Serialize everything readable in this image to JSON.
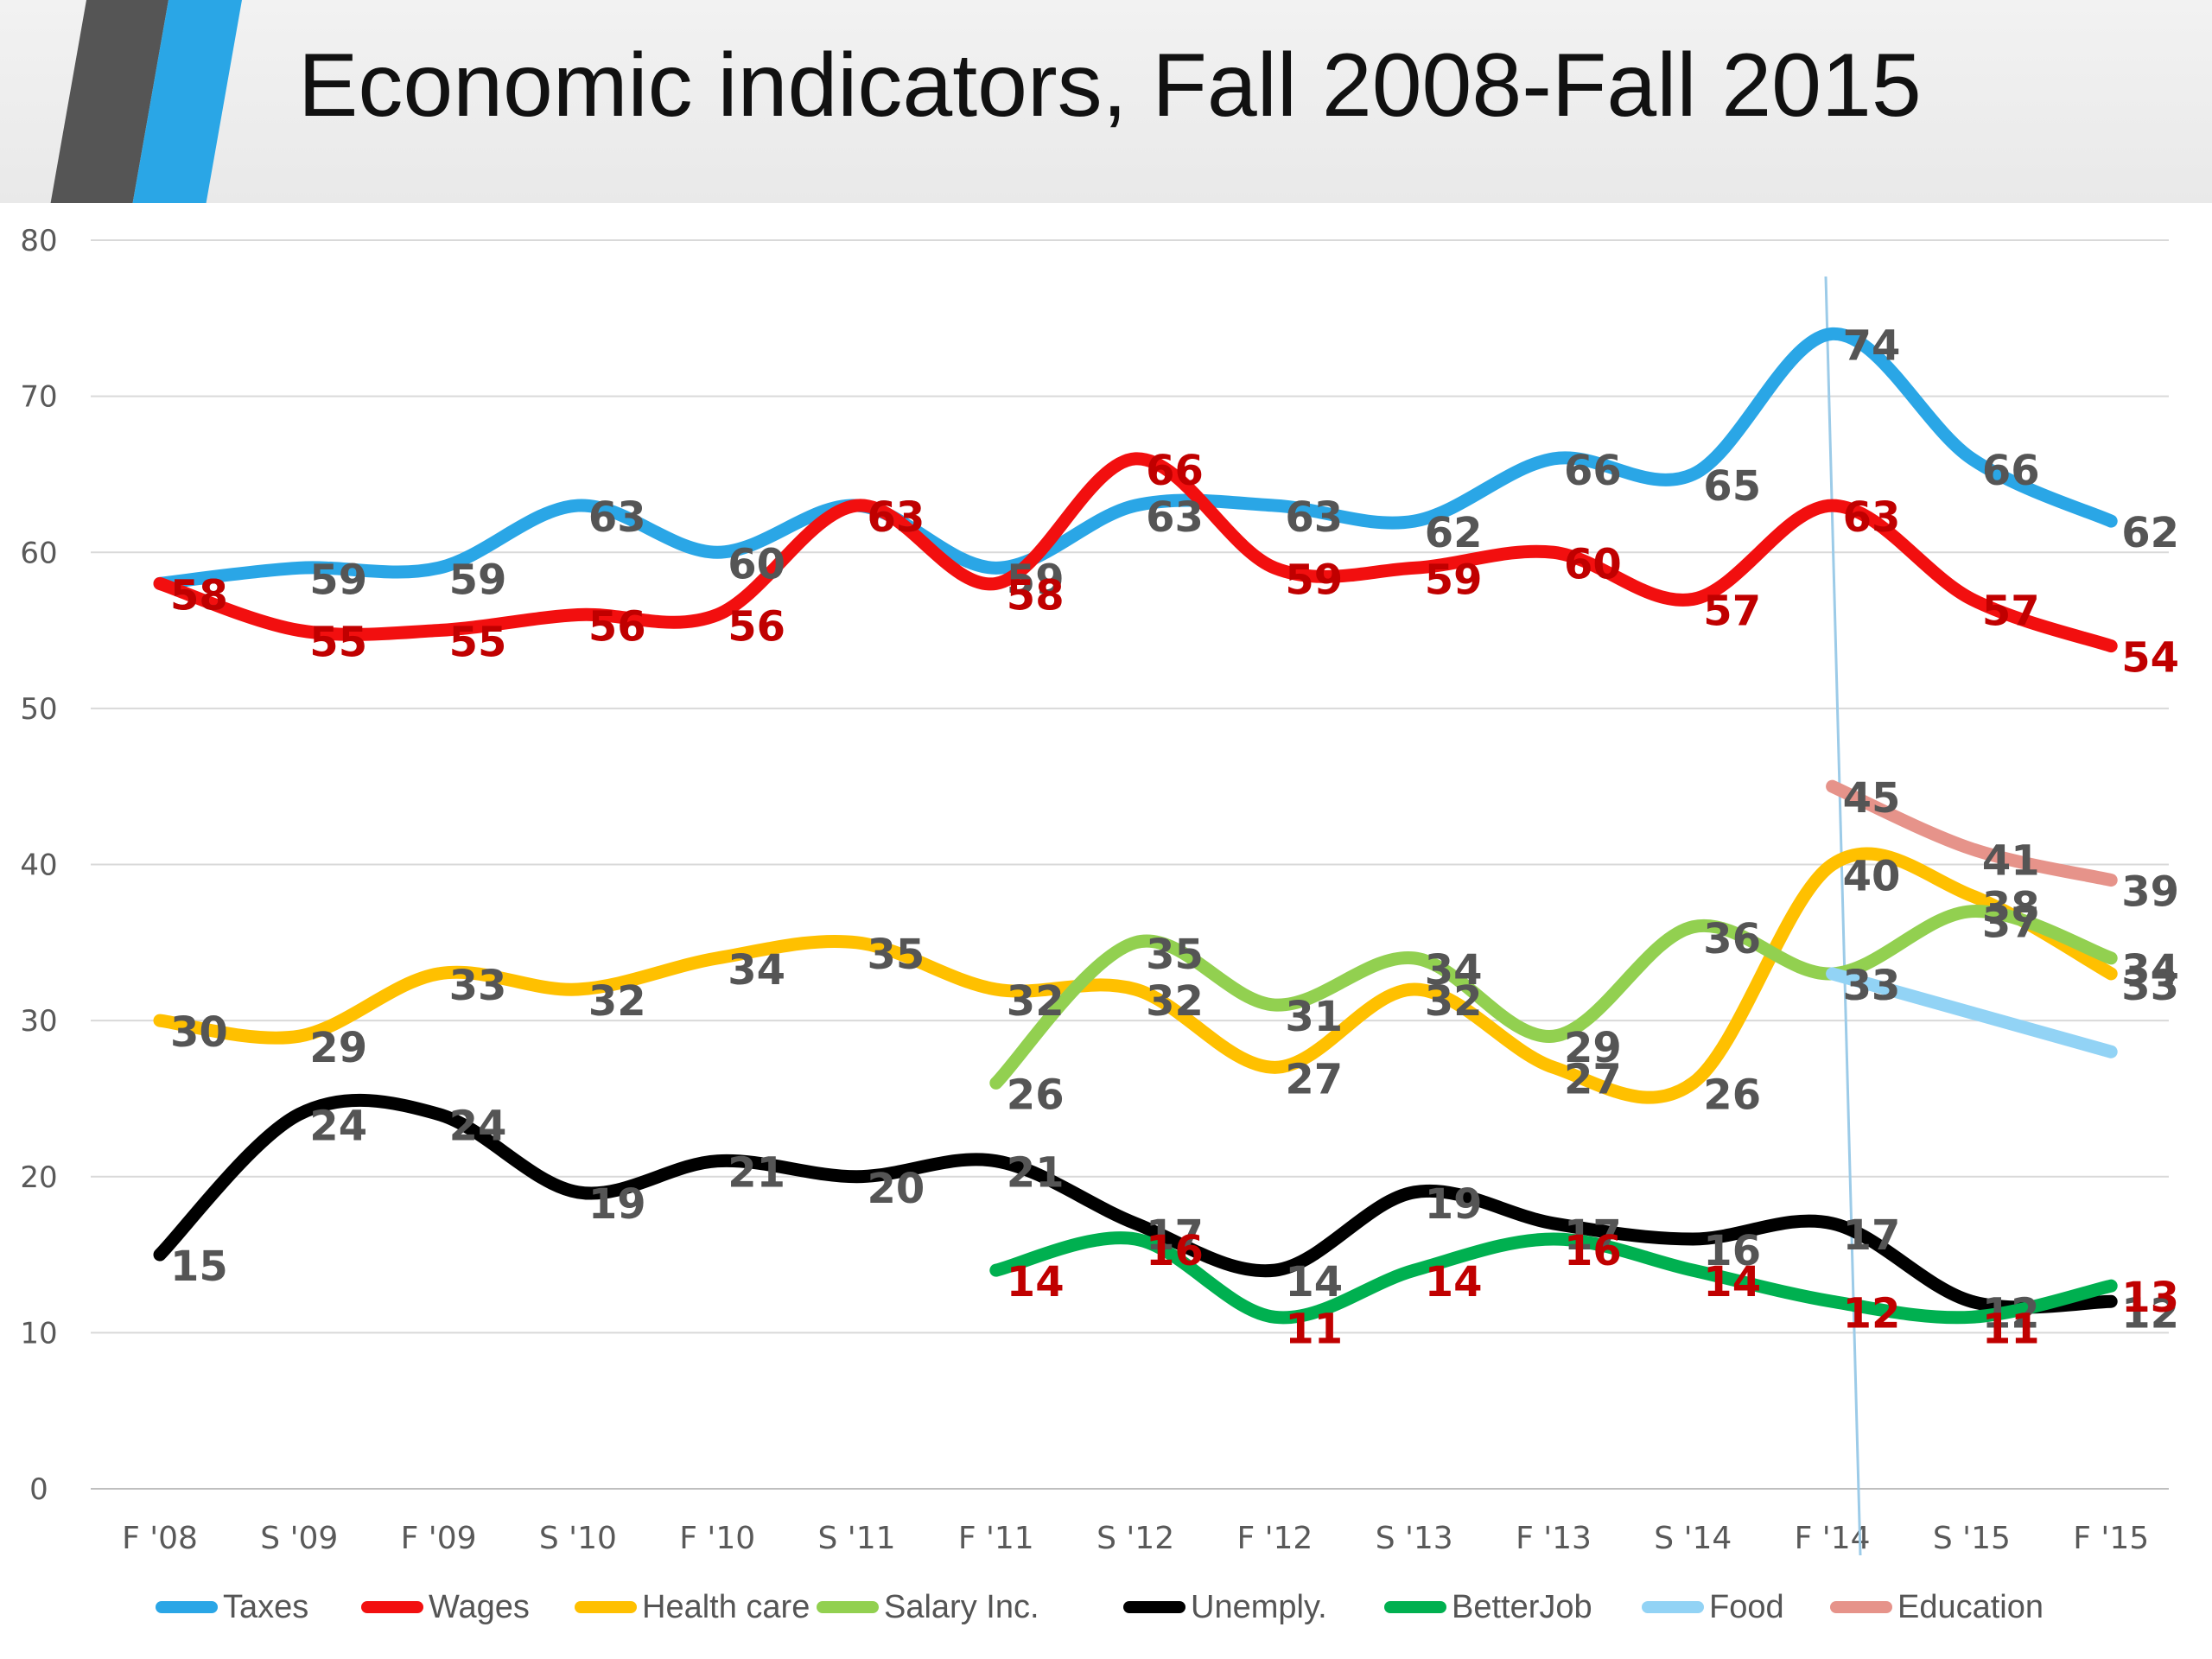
{
  "header": {
    "title": "Economic indicators, Fall 2008-Fall 2015"
  },
  "chart_data": {
    "type": "line",
    "categories": [
      "F '08",
      "S '09",
      "F '09",
      "S '10",
      "F '10",
      "S '11",
      "F '11",
      "S '12",
      "F '12",
      "S '13",
      "F '13",
      "S '14",
      "F '14",
      "S '15",
      "F '15"
    ],
    "ylim": [
      0,
      80
    ],
    "yticks": [
      "0",
      "10",
      "20",
      "30",
      "40",
      "50",
      "60",
      "70",
      "80"
    ],
    "grid": true,
    "legend_position": "bottom",
    "series": [
      {
        "name": "Taxes",
        "color": "#2aa6e6",
        "label_color": "#555555",
        "values": [
          58,
          59,
          59,
          63,
          60,
          63,
          59,
          63,
          63,
          62,
          66,
          65,
          74,
          66,
          62
        ]
      },
      {
        "name": "Wages",
        "color": "#f20f0f",
        "label_color": "#c00000",
        "values": [
          58,
          55,
          55,
          56,
          56,
          63,
          58,
          66,
          59,
          59,
          60,
          57,
          63,
          57,
          54
        ]
      },
      {
        "name": "Health care",
        "color": "#ffc000",
        "label_color": "#555555",
        "values": [
          30,
          29,
          33,
          32,
          34,
          35,
          32,
          32,
          27,
          32,
          27,
          26,
          40,
          38,
          33
        ]
      },
      {
        "name": "Salary Inc.",
        "color": "#92d050",
        "label_color": "#555555",
        "values": [
          null,
          null,
          null,
          null,
          null,
          null,
          26,
          35,
          31,
          34,
          29,
          36,
          33,
          37,
          34
        ]
      },
      {
        "name": "Unemply.",
        "color": "#000000",
        "label_color": "#555555",
        "values": [
          15,
          24,
          24,
          19,
          21,
          20,
          21,
          17,
          14,
          19,
          17,
          16,
          17,
          12,
          12
        ]
      },
      {
        "name": "BetterJob",
        "color": "#00b050",
        "label_color": "#c00000",
        "values": [
          null,
          null,
          null,
          null,
          null,
          null,
          14,
          16,
          11,
          14,
          16,
          14,
          12,
          11,
          13
        ]
      },
      {
        "name": "Food",
        "color": "#92d3f5",
        "label_color": "#555555",
        "values": [
          null,
          null,
          null,
          null,
          null,
          null,
          null,
          null,
          null,
          null,
          null,
          null,
          33,
          null,
          28
        ],
        "show_labels": [
          false,
          false,
          false,
          false,
          false,
          false,
          false,
          false,
          false,
          false,
          false,
          false,
          true,
          false,
          false
        ]
      },
      {
        "name": "Education",
        "color": "#e6938a",
        "label_color": "#555555",
        "values": [
          null,
          null,
          null,
          null,
          null,
          null,
          null,
          null,
          null,
          null,
          null,
          null,
          45,
          41,
          39
        ]
      }
    ]
  }
}
